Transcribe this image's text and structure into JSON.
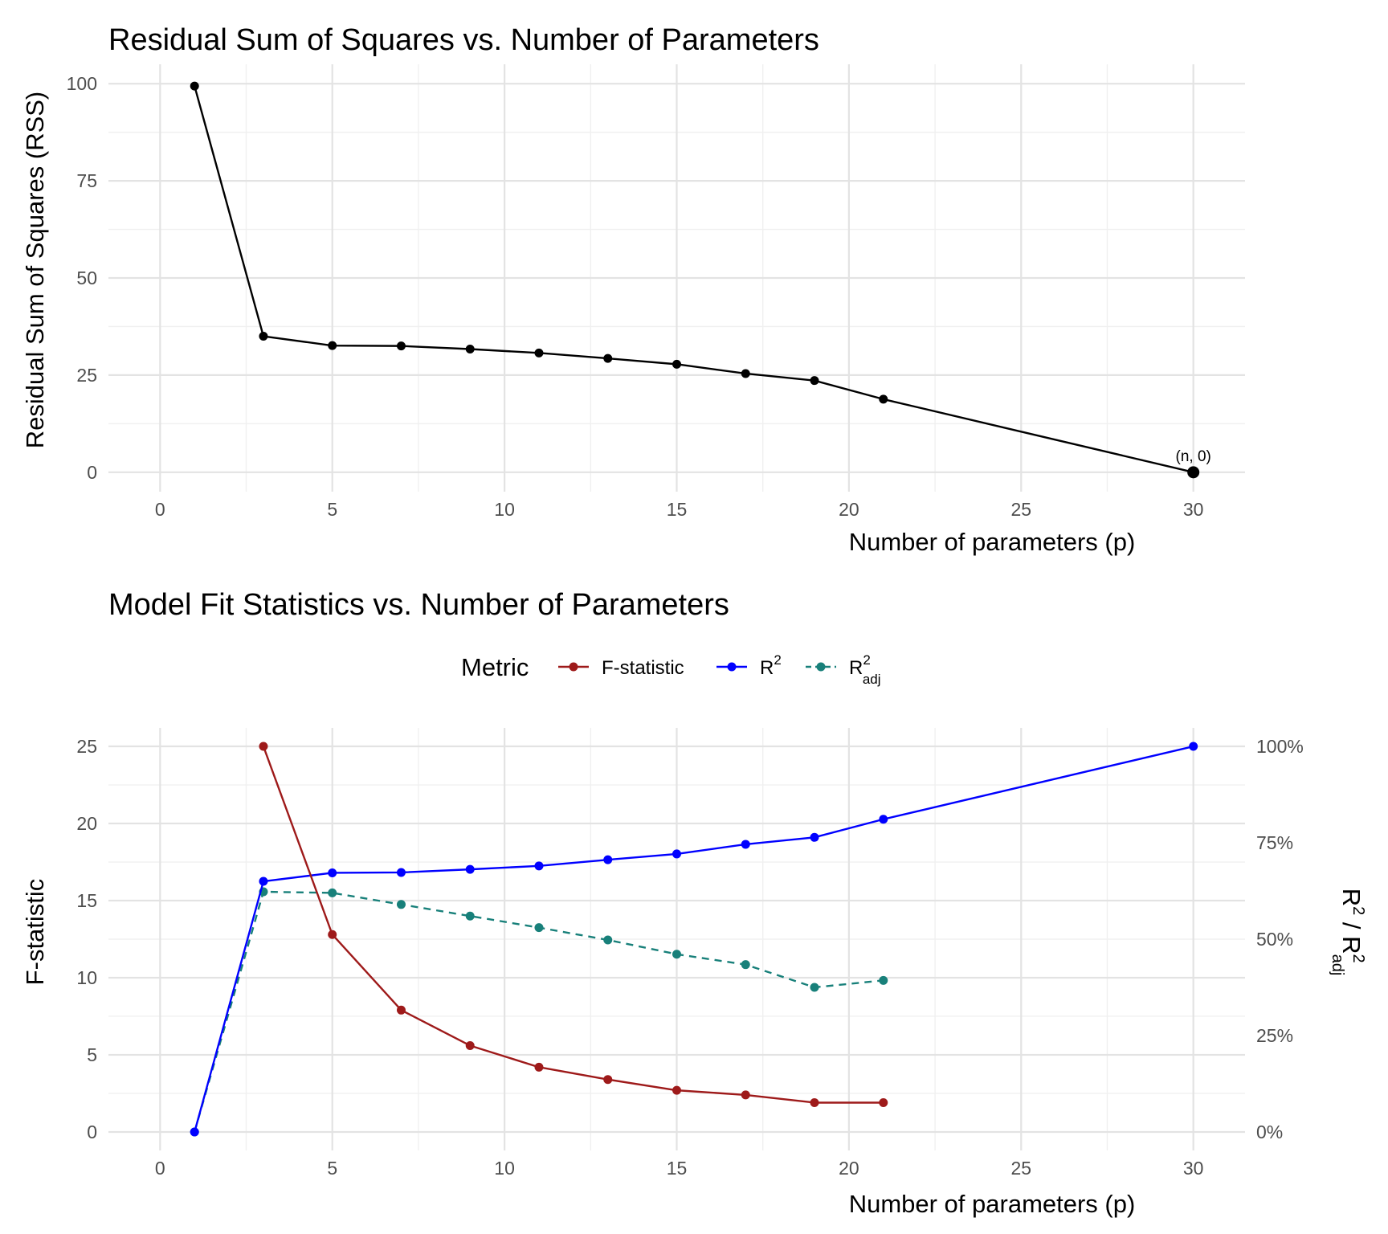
{
  "chart_data": [
    {
      "type": "line",
      "title": "Residual Sum of Squares vs. Number of Parameters",
      "xlabel": "Number of parameters (p)",
      "ylabel": "Residual Sum of Squares (RSS)",
      "xlim": [
        -1.5,
        31.5
      ],
      "ylim": [
        -5,
        105
      ],
      "xticks": [
        0,
        5,
        10,
        15,
        20,
        25,
        30
      ],
      "yticks": [
        0,
        25,
        50,
        75,
        100
      ],
      "grid": true,
      "series": [
        {
          "color": "#000000",
          "linestyle": "solid",
          "x": [
            1,
            3,
            5,
            7,
            9,
            11,
            13,
            15,
            17,
            19,
            21,
            30
          ],
          "y": [
            99.4,
            35,
            32.6,
            32.5,
            31.7,
            30.7,
            29.3,
            27.8,
            25.4,
            23.6,
            18.8,
            0
          ]
        }
      ],
      "annotations": [
        {
          "text": "(n, 0)",
          "x": 30,
          "y": 0
        }
      ]
    },
    {
      "type": "line",
      "title": "Model Fit Statistics vs. Number of Parameters",
      "xlabel": "Number of parameters (p)",
      "ylabel": "F-statistic",
      "ylabel_right": "R² / R²adj",
      "xlim": [
        -1.5,
        31.5
      ],
      "ylim": [
        -1.2,
        26.2
      ],
      "ylim_right_percent": [
        -4.8,
        104.8
      ],
      "xticks": [
        0,
        5,
        10,
        15,
        20,
        25,
        30
      ],
      "yticks": [
        0,
        5,
        10,
        15,
        20,
        25
      ],
      "yticks_right": [
        "0%",
        "25%",
        "50%",
        "75%",
        "100%"
      ],
      "grid": true,
      "legend": {
        "title": "Metric",
        "position": "top",
        "entries": [
          {
            "label": "F-statistic",
            "color": "#9e1a1a",
            "linestyle": "solid"
          },
          {
            "base": "R",
            "sup": "2",
            "color": "#0000ff",
            "linestyle": "solid"
          },
          {
            "base": "R",
            "sup": "2",
            "sub": "adj",
            "color": "#18807a",
            "linestyle": "dashed"
          }
        ]
      },
      "series": [
        {
          "name": "F-statistic",
          "axis": "left",
          "color": "#9e1a1a",
          "linestyle": "solid",
          "x": [
            3,
            5,
            7,
            9,
            11,
            13,
            15,
            17,
            19,
            21
          ],
          "y": [
            25,
            12.8,
            7.9,
            5.6,
            4.2,
            3.4,
            2.7,
            2.4,
            1.9,
            1.9
          ]
        },
        {
          "name": "R²",
          "axis": "right",
          "color": "#0000ff",
          "linestyle": "solid",
          "x": [
            1,
            3,
            5,
            7,
            9,
            11,
            13,
            15,
            17,
            19,
            21,
            30
          ],
          "y_percent": [
            0,
            65,
            67.2,
            67.3,
            68.1,
            69,
            70.6,
            72.1,
            74.6,
            76.4,
            81.1,
            100
          ]
        },
        {
          "name": "R²adj",
          "axis": "right",
          "color": "#18807a",
          "linestyle": "dashed",
          "x": [
            1,
            3,
            5,
            7,
            9,
            11,
            13,
            15,
            17,
            19,
            21
          ],
          "y_percent": [
            0,
            62.3,
            62,
            59,
            56,
            53,
            49.8,
            46.1,
            43.4,
            37.5,
            39.3
          ]
        }
      ]
    }
  ]
}
